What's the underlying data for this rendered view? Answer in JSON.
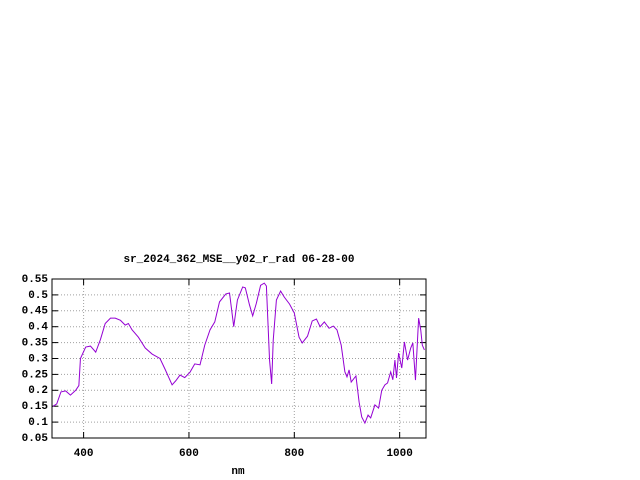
{
  "chart_data": {
    "type": "line",
    "title": "sr_2024_362_MSE__y02_r_rad 06-28-00",
    "xlabel": "nm",
    "x": [
      342,
      349,
      357,
      366,
      375,
      385,
      391,
      394,
      404,
      413,
      423,
      432,
      441,
      451,
      460,
      470,
      479,
      485,
      492,
      504,
      517,
      530,
      545,
      555,
      568,
      575,
      583,
      592,
      602,
      611,
      621,
      630,
      640,
      649,
      658,
      670,
      677,
      685,
      692,
      702,
      707,
      715,
      721,
      728,
      736,
      743,
      747,
      753,
      757,
      760,
      766,
      774,
      781,
      791,
      800,
      809,
      815,
      825,
      834,
      842,
      849,
      857,
      866,
      874,
      881,
      889,
      896,
      900,
      904,
      908,
      917,
      923,
      928,
      934,
      940,
      945,
      953,
      960,
      966,
      972,
      977,
      983,
      987,
      991,
      994,
      998,
      1004,
      1009,
      1015,
      1021,
      1025,
      1030,
      1036,
      1040,
      1043,
      1047
    ],
    "series": [
      {
        "name": "sr_2024_362_MSE__y02_r_rad",
        "color": "#9400d3",
        "values": [
          0.15,
          0.157,
          0.195,
          0.198,
          0.185,
          0.2,
          0.215,
          0.3,
          0.336,
          0.339,
          0.32,
          0.36,
          0.41,
          0.427,
          0.427,
          0.42,
          0.405,
          0.41,
          0.39,
          0.367,
          0.333,
          0.314,
          0.3,
          0.265,
          0.217,
          0.23,
          0.248,
          0.24,
          0.257,
          0.283,
          0.28,
          0.342,
          0.39,
          0.415,
          0.478,
          0.503,
          0.506,
          0.4,
          0.484,
          0.525,
          0.522,
          0.468,
          0.434,
          0.474,
          0.53,
          0.537,
          0.528,
          0.295,
          0.22,
          0.358,
          0.484,
          0.512,
          0.493,
          0.471,
          0.443,
          0.367,
          0.349,
          0.37,
          0.418,
          0.424,
          0.4,
          0.415,
          0.395,
          0.402,
          0.39,
          0.342,
          0.258,
          0.242,
          0.264,
          0.226,
          0.245,
          0.163,
          0.116,
          0.097,
          0.122,
          0.113,
          0.154,
          0.144,
          0.2,
          0.217,
          0.223,
          0.258,
          0.233,
          0.295,
          0.239,
          0.317,
          0.27,
          0.352,
          0.295,
          0.333,
          0.349,
          0.232,
          0.427,
          0.39,
          0.342,
          0.327
        ]
      }
    ],
    "xlim": [
      340,
      1050
    ],
    "ylim": [
      0.05,
      0.55
    ],
    "xticks": [
      400,
      600,
      800,
      1000
    ],
    "yticks": [
      0.05,
      0.1,
      0.15,
      0.2,
      0.25,
      0.3,
      0.35,
      0.4,
      0.45,
      0.5,
      0.55
    ],
    "grid": true
  }
}
